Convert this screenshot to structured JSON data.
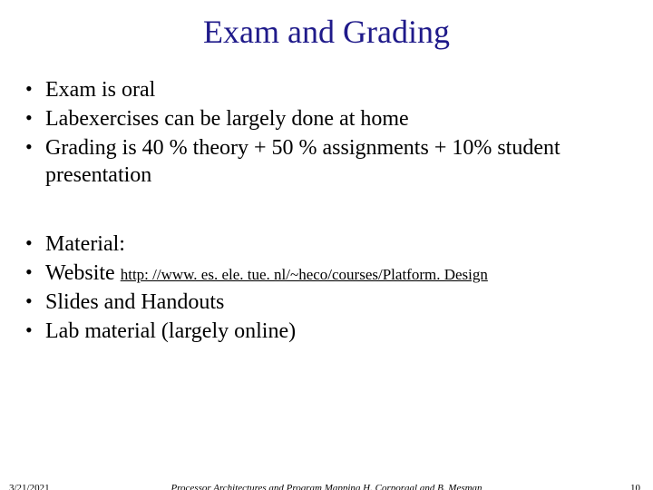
{
  "title": "Exam and Grading",
  "title_color": "#1f1a8a",
  "title_fontsize": 36,
  "body_fontsize": 24,
  "link_fontsize": 17,
  "bullets_group1": [
    "Exam is oral",
    "Labexercises can be largely done at home",
    "Grading is 40 % theory + 50 % assignments + 10% student presentation"
  ],
  "bullets_group2": [
    {
      "text": "Material:"
    },
    {
      "text": "Website ",
      "link": "http: //www. es. ele. tue. nl/~heco/courses/Platform. Design"
    },
    {
      "text": "Slides and Handouts"
    },
    {
      "text": "Lab material (largely online)"
    }
  ],
  "footer": {
    "date": "3/21/2021",
    "center": "Processor Architectures and Program Mapping     H. Corporaal and B. Mesman",
    "page": "10"
  },
  "colors": {
    "background": "#ffffff",
    "text": "#000000",
    "title": "#1f1a8a"
  }
}
